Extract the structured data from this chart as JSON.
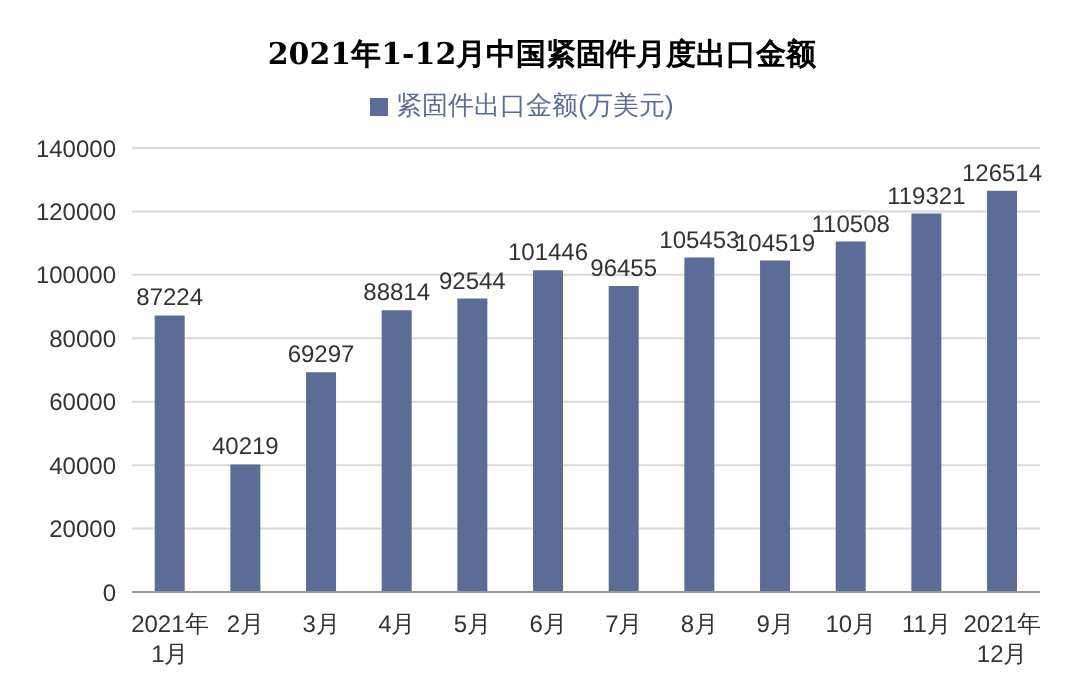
{
  "chart_data": {
    "type": "bar",
    "title": "2021年1-12月中国紧固件月度出口金额",
    "categories": [
      "2021年1月",
      "2月",
      "3月",
      "4月",
      "5月",
      "6月",
      "7月",
      "8月",
      "9月",
      "10月",
      "11月",
      "2021年12月"
    ],
    "series": [
      {
        "name": "紧固件出口金额(万美元)",
        "color": "#5b6c96",
        "values": [
          87224,
          40219,
          69297,
          88814,
          92544,
          101446,
          96455,
          105453,
          104519,
          110508,
          119321,
          126514
        ]
      }
    ],
    "ylim": [
      0,
      140000
    ],
    "yticks": [
      0,
      20000,
      40000,
      60000,
      80000,
      100000,
      120000,
      140000
    ],
    "grid": "y",
    "legend": "top",
    "data_labels": true
  }
}
